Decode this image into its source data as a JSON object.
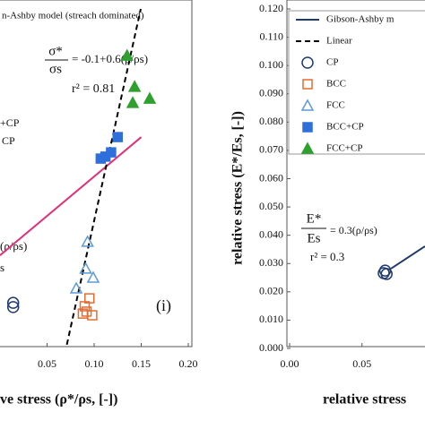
{
  "chart_data": [
    {
      "type": "scatter",
      "legend_title": "n-Ashby model (streach dominated)",
      "legend_fragments": [
        "+CP",
        "CP"
      ],
      "equation_lhs_top": "σ*",
      "equation_lhs_bottom": "σs",
      "equation_rhs": "= -0.1+0.6(ρ/ρs)",
      "r2": "r² = 0.81",
      "panel": "(i)",
      "fragment": "(ρ/ρs)",
      "fragment2": "s",
      "xlabel": "ve stress (ρ*/ρs, [-])",
      "xlim": [
        0,
        0.2
      ],
      "xticks": [
        {
          "value": 0.05,
          "label": "0.05"
        },
        {
          "value": 0.1,
          "label": "0.10"
        },
        {
          "value": 0.15,
          "label": "0.15"
        },
        {
          "value": 0.2,
          "label": "0.20"
        }
      ],
      "ylim": [
        0,
        0.12
      ],
      "series": [
        {
          "name": "CP",
          "color": "#1f3a6e",
          "marker": "circle",
          "x": [
            0.014,
            0.014
          ],
          "values": [
            0.0161,
            0.0146
          ]
        },
        {
          "name": "BCC",
          "color": "#e46c2f",
          "marker": "square",
          "x": [
            0.095,
            0.09,
            0.092,
            0.088,
            0.098
          ],
          "values": [
            0.0177,
            0.0149,
            0.013,
            0.0123,
            0.0117
          ]
        },
        {
          "name": "FCC",
          "color": "#5b9bd5",
          "marker": "triangle",
          "x": [
            0.093,
            0.091,
            0.099,
            0.081
          ],
          "values": [
            0.0377,
            0.0282,
            0.025,
            0.0212
          ]
        },
        {
          "name": "BCC+CP",
          "color": "#2f6fdc",
          "marker": "square-filled",
          "x": [
            0.125,
            0.118,
            0.112,
            0.107
          ],
          "values": [
            0.0747,
            0.0693,
            0.0678,
            0.0671
          ]
        },
        {
          "name": "FCC+CP",
          "color": "#2ea02e",
          "marker": "triangle-filled",
          "x": [
            0.135,
            0.143,
            0.159,
            0.141
          ],
          "values": [
            0.1035,
            0.0925,
            0.0883,
            0.0868
          ]
        }
      ],
      "lines": [
        {
          "color": "#e0307a",
          "dash": false,
          "x": [
            0,
            0.15
          ],
          "values": [
            0.0329,
            0.0747
          ]
        },
        {
          "color": "#000000",
          "dash": true,
          "x": [
            0.071,
            0.1495
          ],
          "values": [
            0.0013,
            0.12
          ]
        }
      ]
    },
    {
      "type": "scatter",
      "ylabel": "relative stress (E*/Es, [-])",
      "xlabel": "relative stress",
      "equation_lhs_top": "E*",
      "equation_lhs_bottom": "Es",
      "equation_rhs": "= 0.3(ρ/ρs)",
      "r2": "r² = 0.3",
      "xlim": [
        0,
        0.0935
      ],
      "xticks": [
        {
          "value": 0,
          "label": "0.00"
        },
        {
          "value": 0.05,
          "label": "0.05"
        }
      ],
      "ylim": [
        0,
        0.12
      ],
      "yticks": [
        {
          "value": 0,
          "label": "0.000"
        },
        {
          "value": 0.01,
          "label": "0.010"
        },
        {
          "value": 0.02,
          "label": "0.020"
        },
        {
          "value": 0.03,
          "label": "0.030"
        },
        {
          "value": 0.04,
          "label": "0.040"
        },
        {
          "value": 0.05,
          "label": "0.050"
        },
        {
          "value": 0.06,
          "label": "0.060"
        },
        {
          "value": 0.07,
          "label": "0.070"
        },
        {
          "value": 0.08,
          "label": "0.080"
        },
        {
          "value": 0.09,
          "label": "0.090"
        },
        {
          "value": 0.1,
          "label": "0.100"
        },
        {
          "value": 0.11,
          "label": "0.110"
        },
        {
          "value": 0.12,
          "label": "0.120"
        }
      ],
      "legend_lines": [
        {
          "name": "Gibson-Ashby m",
          "color": "#1f3a6e",
          "dash": false
        },
        {
          "name": "Linear",
          "color": "#000000",
          "dash": true
        }
      ],
      "series": [
        {
          "name": "CP",
          "color": "#1f3a6e",
          "marker": "circle",
          "x": [
            0.066,
            0.067,
            0.065
          ],
          "values": [
            0.0275,
            0.0263,
            0.0266
          ]
        },
        {
          "name": "BCC",
          "color": "#e46c2f",
          "marker": "square",
          "x": [],
          "values": []
        },
        {
          "name": "FCC",
          "color": "#5b9bd5",
          "marker": "triangle",
          "x": [],
          "values": []
        },
        {
          "name": "BCC+CP",
          "color": "#2f6fdc",
          "marker": "square-filled",
          "x": [],
          "values": []
        },
        {
          "name": "FCC+CP",
          "color": "#2ea02e",
          "marker": "triangle-filled",
          "x": [],
          "values": []
        }
      ],
      "lines": [
        {
          "color": "#1f3a6e",
          "dash": false,
          "x": [
            0.07,
            0.0935
          ],
          "values": [
            0.0282,
            0.0361
          ]
        }
      ]
    }
  ]
}
